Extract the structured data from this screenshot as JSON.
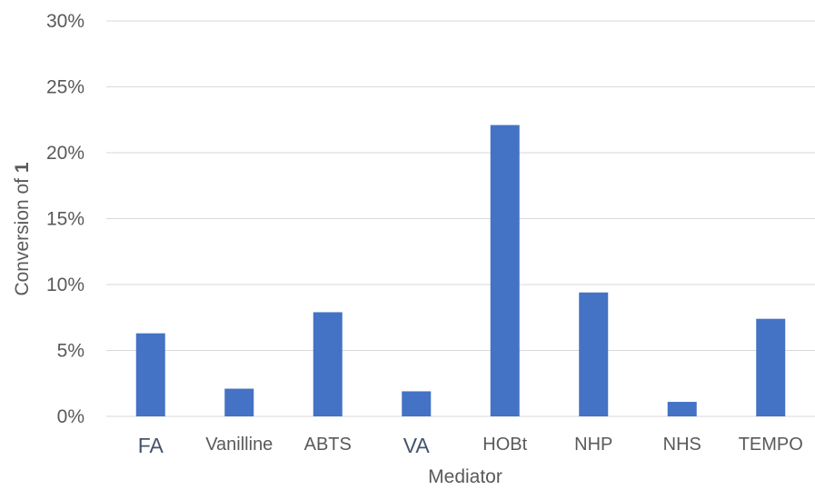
{
  "chart_data": {
    "type": "bar",
    "title": "",
    "xlabel": "Mediator",
    "ylabel": "Conversion of ",
    "ylabel_bold": "1",
    "categories": [
      "FA",
      "Vanilline",
      "ABTS",
      "VA",
      "HOBt",
      "NHP",
      "NHS",
      "TEMPO"
    ],
    "values": [
      6.3,
      2.1,
      7.9,
      1.9,
      22.1,
      9.4,
      1.1,
      7.4
    ],
    "ylim": [
      0,
      30
    ],
    "yticks": [
      0,
      5,
      10,
      15,
      20,
      25,
      30
    ],
    "ytick_suffix": "%",
    "grid": true,
    "legend": "none",
    "colors": {
      "bar": "#4472C4",
      "grid": "#D9D9D9",
      "text": "#595959",
      "category_text_alt": "#44546A"
    }
  }
}
